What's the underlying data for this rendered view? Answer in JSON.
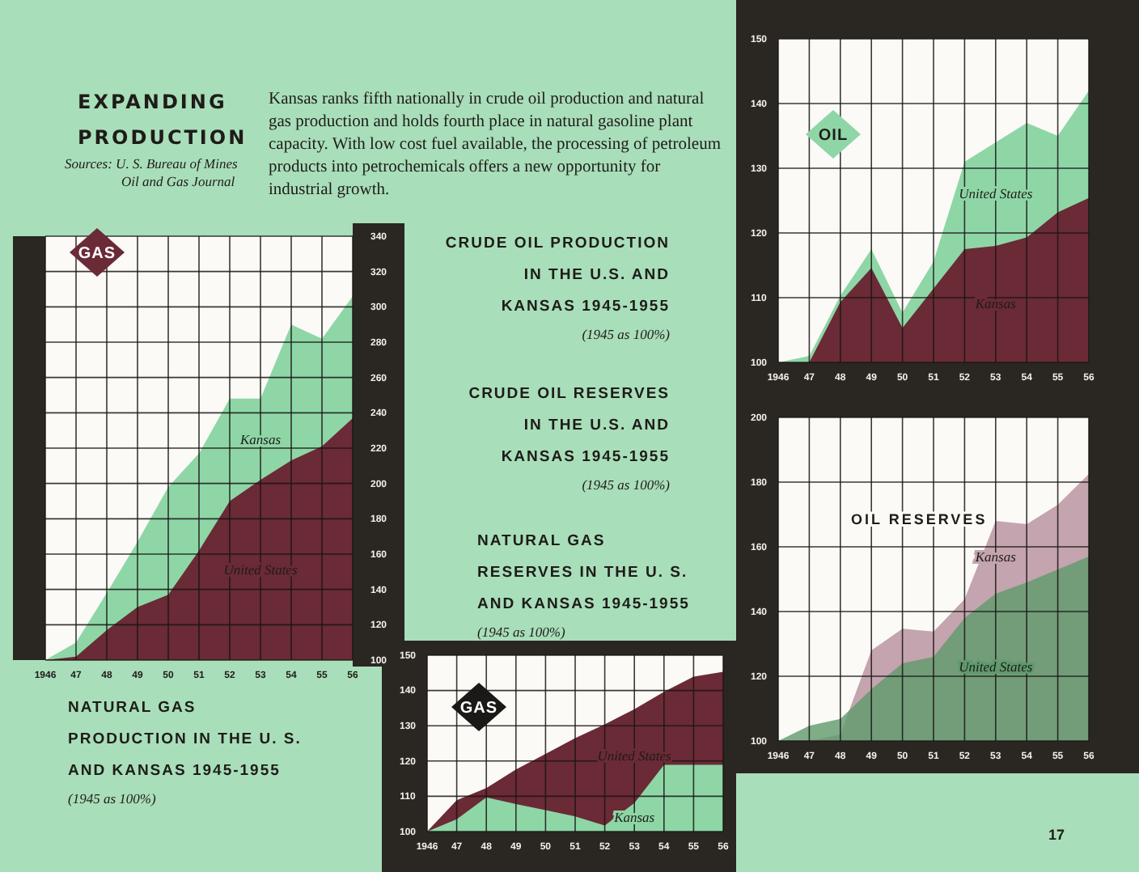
{
  "chart_data": [
    {
      "type": "other",
      "title": "EXPANDING PRODUCTION",
      "annotations": [
        "Sources: U. S. Bureau of Mines",
        "Oil and Gas Journal",
        "Kansas ranks fifth nationally in crude oil production and natural gas production and holds fourth place in natural gasoline plant capacity. With low cost fuel available, the processing of petroleum products into petrochemicals offers a new opportunity for industrial growth.",
        "17"
      ]
    },
    {
      "type": "area",
      "title": "NATURAL GAS PRODUCTION IN THE U. S. AND KANSAS 1945-1955",
      "subtitle": "(1945 as 100%)",
      "annotations": [
        "GAS"
      ],
      "categories": [
        "1946",
        "47",
        "48",
        "49",
        "50",
        "51",
        "52",
        "53",
        "54",
        "55",
        "56"
      ],
      "ylim": [
        100,
        340
      ],
      "yticks": [
        100,
        120,
        140,
        160,
        180,
        200,
        220,
        240,
        260,
        280,
        300,
        320,
        340
      ],
      "grid": true,
      "series": [
        {
          "name": "Kansas",
          "color": "#8ed6a6",
          "values": [
            100,
            110,
            138,
            167,
            198,
            217,
            248,
            248,
            290,
            282,
            306
          ]
        },
        {
          "name": "United States",
          "color": "#6a2a36",
          "values": [
            100,
            102,
            117,
            130,
            137,
            162,
            190,
            202,
            213,
            221,
            237
          ]
        }
      ]
    },
    {
      "type": "area",
      "title": "CRUDE OIL PRODUCTION IN THE U.S. AND KANSAS 1945-1955",
      "subtitle": "(1945 as 100%)",
      "annotations": [
        "OIL"
      ],
      "categories": [
        "1946",
        "47",
        "48",
        "49",
        "50",
        "51",
        "52",
        "53",
        "54",
        "55",
        "56"
      ],
      "ylim": [
        100,
        150
      ],
      "yticks": [
        100,
        110,
        120,
        130,
        140,
        150
      ],
      "grid": true,
      "series": [
        {
          "name": "United States",
          "color": "#8ed6a6",
          "values": [
            100,
            101,
            110.3,
            117.5,
            107.7,
            115.6,
            131,
            134,
            137,
            135,
            142
          ]
        },
        {
          "name": "Kansas",
          "color": "#6a2a36",
          "values": [
            100,
            100,
            109.3,
            114.6,
            105.3,
            111.4,
            117.5,
            118,
            119.3,
            123.2,
            125.4
          ]
        }
      ]
    },
    {
      "type": "area",
      "title": "CRUDE OIL RESERVES IN THE U.S. AND KANSAS 1945-1955",
      "subtitle": "(1945 as 100%)",
      "annotations": [
        "OIL RESERVES"
      ],
      "categories": [
        "1946",
        "47",
        "48",
        "49",
        "50",
        "51",
        "52",
        "53",
        "54",
        "55",
        "56"
      ],
      "ylim": [
        100,
        200
      ],
      "yticks": [
        100,
        120,
        140,
        160,
        180,
        200
      ],
      "grid": true,
      "series": [
        {
          "name": "Kansas",
          "color": "#c4a4ae",
          "values": [
            100,
            100,
            102,
            128,
            134.7,
            133.8,
            143.8,
            168,
            167,
            173,
            182.5
          ]
        },
        {
          "name": "United States",
          "color": "#5f9a6c",
          "values": [
            100,
            104.7,
            106.8,
            116,
            124,
            126,
            138,
            145.5,
            149,
            153,
            157
          ]
        }
      ]
    },
    {
      "type": "area",
      "title": "NATURAL GAS RESERVES IN THE U. S. AND KANSAS 1945-1955",
      "subtitle": "(1945 as 100%)",
      "annotations": [
        "GAS"
      ],
      "categories": [
        "1946",
        "47",
        "48",
        "49",
        "50",
        "51",
        "52",
        "53",
        "54",
        "55",
        "56"
      ],
      "ylim": [
        100,
        150
      ],
      "yticks": [
        100,
        110,
        120,
        130,
        140,
        150
      ],
      "grid": true,
      "series": [
        {
          "name": "United States",
          "color": "#6a2a36",
          "values": [
            100,
            108.9,
            112.3,
            117.6,
            122,
            126.5,
            130.4,
            134.7,
            139.6,
            143.9,
            145.3
          ]
        },
        {
          "name": "Kansas",
          "color": "#8ed6a6",
          "values": [
            100,
            103.5,
            109.7,
            107.8,
            106.1,
            104.3,
            101.7,
            108.1,
            118.9,
            118.9,
            118.9
          ]
        }
      ]
    }
  ]
}
